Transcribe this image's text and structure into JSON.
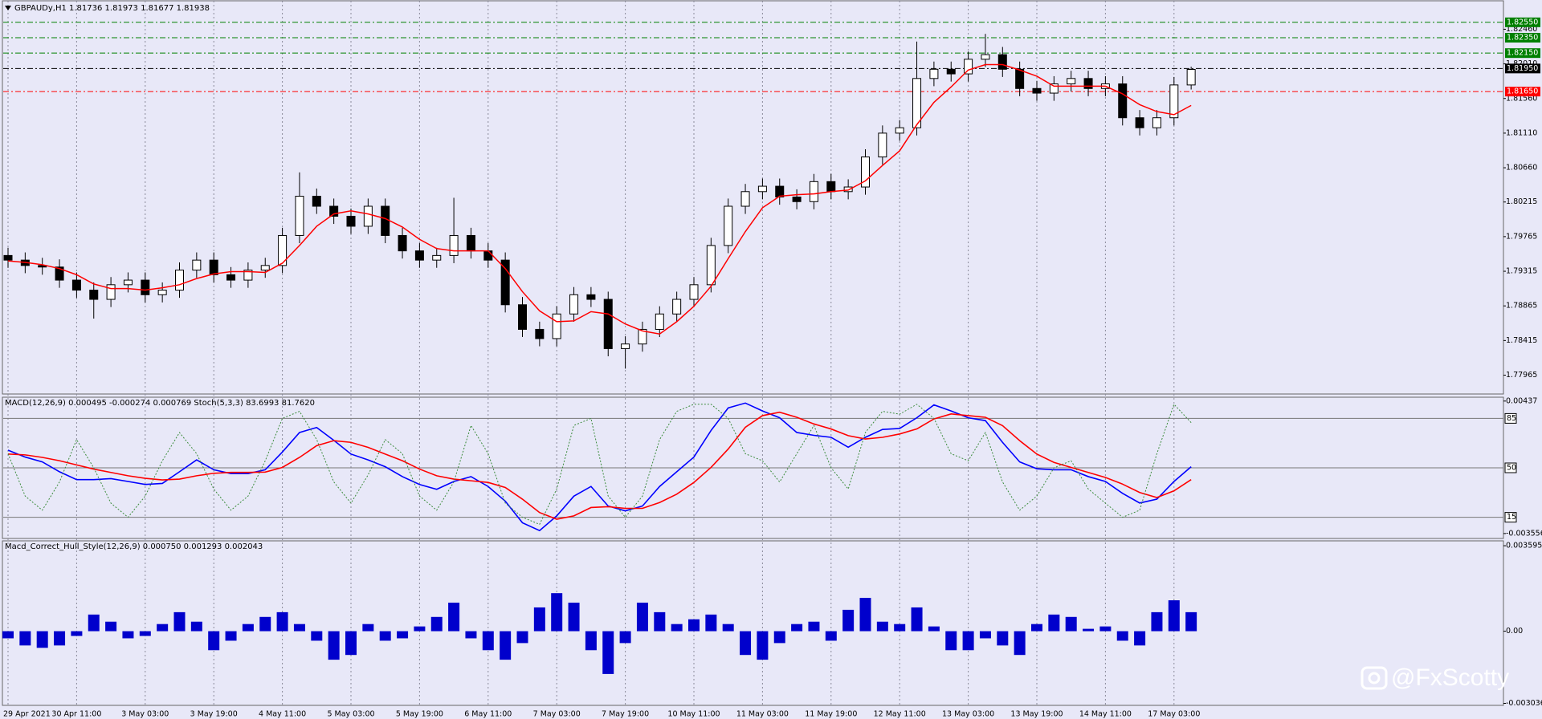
{
  "chart_data": [
    {
      "type": "candlestick",
      "title": "GBPAUDy,H1  1.81736 1.81973 1.81677 1.81938",
      "categories": [
        "29 Apr 2021",
        null,
        null,
        null,
        "30 Apr 11:00",
        null,
        null,
        null,
        "3 May 03:00",
        null,
        null,
        null,
        "3 May 19:00",
        null,
        null,
        null,
        "4 May 11:00",
        null,
        null,
        null,
        "5 May 03:00",
        null,
        null,
        null,
        "5 May 19:00",
        null,
        null,
        null,
        "6 May 11:00",
        null,
        null,
        null,
        "7 May 03:00",
        null,
        null,
        null,
        "7 May 19:00",
        null,
        null,
        null,
        "10 May 11:00",
        null,
        null,
        null,
        "11 May 03:00",
        null,
        null,
        null,
        "11 May 19:00",
        null,
        null,
        null,
        "12 May 11:00",
        null,
        null,
        null,
        "13 May 03:00",
        null,
        null,
        null,
        "13 May 19:00",
        null,
        null,
        null,
        "14 May 11:00",
        null,
        null,
        null,
        "17 May 03:00",
        null
      ],
      "open": [
        1.7952,
        1.7946,
        1.7939,
        1.7937,
        1.792,
        1.7907,
        1.7895,
        1.7914,
        1.792,
        1.7901,
        1.7907,
        1.7933,
        1.7946,
        1.7927,
        1.792,
        1.7933,
        1.7939,
        1.7978,
        1.8029,
        1.8016,
        1.8003,
        1.799,
        1.8016,
        1.7978,
        1.7958,
        1.7946,
        1.7952,
        1.7978,
        1.7958,
        1.7946,
        1.7888,
        1.7856,
        1.7844,
        1.7876,
        1.7901,
        1.7895,
        1.7831,
        1.7837,
        1.7856,
        1.7876,
        1.7895,
        1.7914,
        1.7965,
        1.8016,
        1.8035,
        1.8042,
        1.8028,
        1.8022,
        1.8048,
        1.8035,
        1.8041,
        1.808,
        1.8111,
        1.8118,
        1.8182,
        1.8194,
        1.8188,
        1.8207,
        1.8213,
        1.8194,
        1.8169,
        1.8163,
        1.8175,
        1.8182,
        1.8169,
        1.8175,
        1.8131,
        1.8118,
        1.8131,
        1.81736
      ],
      "high": [
        1.7962,
        1.7956,
        1.7949,
        1.7947,
        1.793,
        1.7917,
        1.7924,
        1.793,
        1.793,
        1.7917,
        1.7943,
        1.7956,
        1.7956,
        1.7937,
        1.7943,
        1.7949,
        1.7988,
        1.806,
        1.8039,
        1.8026,
        1.8013,
        1.8026,
        1.8026,
        1.7988,
        1.7968,
        1.7962,
        1.8027,
        1.7988,
        1.7968,
        1.7956,
        1.7898,
        1.7866,
        1.7886,
        1.7911,
        1.7911,
        1.7905,
        1.7847,
        1.7866,
        1.7886,
        1.7905,
        1.7924,
        1.7975,
        1.8026,
        1.8045,
        1.8052,
        1.8052,
        1.8038,
        1.8058,
        1.8058,
        1.8051,
        1.809,
        1.8121,
        1.8128,
        1.823,
        1.8204,
        1.8204,
        1.8217,
        1.824,
        1.8223,
        1.8204,
        1.8179,
        1.8185,
        1.8192,
        1.8192,
        1.8185,
        1.8185,
        1.8141,
        1.8141,
        1.8184,
        1.81973
      ],
      "low": [
        1.7936,
        1.7929,
        1.7927,
        1.791,
        1.7897,
        1.787,
        1.7885,
        1.7904,
        1.7891,
        1.7891,
        1.7897,
        1.7923,
        1.7917,
        1.791,
        1.791,
        1.7923,
        1.7929,
        1.7968,
        1.8006,
        1.7993,
        1.798,
        1.798,
        1.7968,
        1.7948,
        1.7936,
        1.7936,
        1.7942,
        1.7948,
        1.7936,
        1.7878,
        1.7846,
        1.7834,
        1.7834,
        1.7866,
        1.7885,
        1.7821,
        1.7805,
        1.7827,
        1.7846,
        1.7866,
        1.7885,
        1.7904,
        1.7955,
        1.8006,
        1.8025,
        1.8018,
        1.8012,
        1.8012,
        1.8025,
        1.8025,
        1.8031,
        1.807,
        1.8101,
        1.8108,
        1.8172,
        1.8178,
        1.8178,
        1.8197,
        1.8184,
        1.8159,
        1.8153,
        1.8153,
        1.8165,
        1.8159,
        1.8159,
        1.8121,
        1.8108,
        1.8108,
        1.8121,
        1.81677
      ],
      "close": [
        1.7946,
        1.7939,
        1.7937,
        1.792,
        1.7907,
        1.7895,
        1.7914,
        1.792,
        1.7901,
        1.7907,
        1.7933,
        1.7946,
        1.7927,
        1.792,
        1.7933,
        1.7939,
        1.7978,
        1.8029,
        1.8016,
        1.8003,
        1.799,
        1.8016,
        1.7978,
        1.7958,
        1.7946,
        1.7952,
        1.7978,
        1.7958,
        1.7946,
        1.7888,
        1.7856,
        1.7844,
        1.7876,
        1.7901,
        1.7895,
        1.7831,
        1.7837,
        1.7856,
        1.7876,
        1.7895,
        1.7914,
        1.7965,
        1.8016,
        1.8035,
        1.8042,
        1.8028,
        1.8022,
        1.8048,
        1.8035,
        1.8041,
        1.808,
        1.8111,
        1.8118,
        1.8182,
        1.8194,
        1.8188,
        1.8207,
        1.8213,
        1.8194,
        1.8169,
        1.8163,
        1.8175,
        1.8182,
        1.8169,
        1.8175,
        1.8131,
        1.8118,
        1.8131,
        1.81736,
        1.81938
      ],
      "up_color": "#ffffff",
      "down_color": "#000000",
      "wick_color": "#000000",
      "series": [
        {
          "color": "#ff0000",
          "values": [
            1.7945,
            1.7943,
            1.794,
            1.7935,
            1.7927,
            1.7915,
            1.7909,
            1.7909,
            1.7907,
            1.791,
            1.7914,
            1.7922,
            1.7928,
            1.7931,
            1.7931,
            1.793,
            1.7942,
            1.7965,
            1.799,
            1.8006,
            1.801,
            1.8006,
            1.8,
            1.7989,
            1.7973,
            1.7961,
            1.7958,
            1.7958,
            1.7958,
            1.7935,
            1.7905,
            1.788,
            1.7866,
            1.7867,
            1.7879,
            1.7876,
            1.7863,
            1.7854,
            1.785,
            1.7866,
            1.7886,
            1.7912,
            1.7948,
            1.7983,
            1.8014,
            1.8029,
            1.8031,
            1.8032,
            1.8035,
            1.8037,
            1.8049,
            1.8069,
            1.8088,
            1.8122,
            1.8151,
            1.8171,
            1.8193,
            1.82,
            1.82,
            1.8193,
            1.8185,
            1.8172,
            1.8172,
            1.8172,
            1.8172,
            1.8162,
            1.8148,
            1.8139,
            1.8135,
            1.8147
          ]
        }
      ],
      "levels": [
        {
          "value": 1.8255,
          "label": "1.82550",
          "color": "#008000"
        },
        {
          "value": 1.8235,
          "label": "1.82350",
          "color": "#008000"
        },
        {
          "value": 1.8215,
          "label": "1.82150",
          "color": "#008000"
        },
        {
          "value": 1.8195,
          "label": "1.81950",
          "color": "#000000"
        },
        {
          "value": 1.8165,
          "label": "1.81650",
          "color": "#ff0000"
        }
      ],
      "ylim": [
        1.7772,
        1.8284
      ],
      "yticks": [
        {
          "value": 1.8246,
          "label": "1.82460"
        },
        {
          "value": 1.8201,
          "label": "1.82010"
        },
        {
          "value": 1.8156,
          "label": "1.81560"
        },
        {
          "value": 1.8111,
          "label": "1.81110"
        },
        {
          "value": 1.8066,
          "label": "1.80660"
        },
        1.80215,
        1.79765,
        1.79315,
        1.78865,
        1.78415,
        1.77965
      ],
      "grid": true
    },
    {
      "type": "line",
      "title": "MACD(12,26,9) 0.000495 -0.000274 0.000769  Stoch(5,3,3) 83.6993 81.7620",
      "series": [
        {
          "color": "#0000ff",
          "values": [
            0.00143,
            0.00102,
            0.00073,
            0.00014,
            -0.00033,
            -0.00033,
            -0.00027,
            -0.00044,
            -0.00062,
            -0.00056,
            0.00014,
            0.00085,
            0.00026,
            3e-05,
            3e-05,
            0.00026,
            0.00132,
            0.00249,
            0.00279,
            0.00202,
            0.0012,
            0.00085,
            0.00044,
            -0.00015,
            -0.00062,
            -0.00091,
            -0.00044,
            -0.00015,
            -0.00074,
            -0.00162,
            -0.00291,
            -0.00338,
            -0.0025,
            -0.00132,
            -0.00074,
            -0.00191,
            -0.0022,
            -0.00191,
            -0.00074,
            0.00014,
            0.00102,
            0.00261,
            0.00396,
            0.00425,
            0.00378,
            0.00337,
            0.00249,
            0.00232,
            0.0022,
            0.00161,
            0.0022,
            0.00267,
            0.00273,
            0.00337,
            0.00414,
            0.00378,
            0.00337,
            0.0032,
            0.0019,
            0.00073,
            0.00032,
            0.00026,
            0.00026,
            -0.00015,
            -0.00044,
            -0.00115,
            -0.00173,
            -0.0015,
            -0.00044,
            0.00044
          ]
        },
        {
          "color": "#ff0000",
          "values": [
            0.0012,
            0.00115,
            0.001,
            0.0008,
            0.00055,
            0.0003,
            0.0001,
            -0.0001,
            -0.00025,
            -0.00035,
            -0.0003,
            -0.0001,
            5e-05,
            0.0001,
            0.0001,
            0.00012,
            0.0004,
            0.001,
            0.0017,
            0.002,
            0.0019,
            0.0016,
            0.0012,
            0.0008,
            0.0003,
            -0.0001,
            -0.0003,
            -0.0004,
            -0.0005,
            -0.0008,
            -0.0015,
            -0.0023,
            -0.0027,
            -0.0025,
            -0.002,
            -0.00195,
            -0.00205,
            -0.00205,
            -0.0017,
            -0.0012,
            -0.0005,
            0.0004,
            0.0015,
            0.0028,
            0.0035,
            0.0037,
            0.0034,
            0.003,
            0.0027,
            0.0023,
            0.0021,
            0.0022,
            0.0024,
            0.0027,
            0.0033,
            0.0036,
            0.0035,
            0.0034,
            0.0029,
            0.002,
            0.0012,
            0.0007,
            0.0004,
            0.0001,
            -0.0002,
            -0.0006,
            -0.0011,
            -0.0014,
            -0.001,
            -0.00033
          ]
        },
        {
          "color": "#3c8c3c",
          "axis": "y2",
          "dashed": true,
          "values": [
            60,
            30,
            20,
            40,
            70,
            50,
            25,
            15,
            30,
            55,
            75,
            60,
            35,
            20,
            30,
            55,
            85,
            90,
            70,
            40,
            25,
            45,
            70,
            60,
            30,
            20,
            40,
            80,
            60,
            25,
            15,
            10,
            35,
            80,
            85,
            30,
            15,
            30,
            70,
            90,
            95,
            95,
            85,
            60,
            55,
            40,
            60,
            80,
            50,
            35,
            75,
            90,
            88,
            95,
            85,
            60,
            55,
            75,
            40,
            20,
            30,
            50,
            55,
            35,
            25,
            15,
            20,
            60,
            95,
            82
          ]
        }
      ],
      "ylim": [
        -0.00385,
        0.0046
      ],
      "yticks": [
        0.00437,
        -0.003556
      ],
      "y2lim": [
        0,
        100
      ],
      "y2ticks": [
        85,
        50,
        15
      ]
    },
    {
      "type": "bar",
      "title": "Macd_Correct_Hull_Style(12,26,9) 0.000750 0.001293 0.002043",
      "color": "#0000cc",
      "values": [
        -0.0003,
        -0.0006,
        -0.0007,
        -0.0006,
        -0.0002,
        0.0007,
        0.0004,
        -0.0003,
        -0.0002,
        0.0003,
        0.0008,
        0.0004,
        -0.0008,
        -0.0004,
        0.0003,
        0.0006,
        0.0008,
        0.0003,
        -0.0004,
        -0.0012,
        -0.001,
        0.0003,
        -0.0004,
        -0.0003,
        0.0002,
        0.0006,
        0.0012,
        -0.0003,
        -0.0008,
        -0.0012,
        -0.0005,
        0.001,
        0.0016,
        0.0012,
        -0.0008,
        -0.0018,
        -0.0005,
        0.0012,
        0.0008,
        0.0003,
        0.0005,
        0.0007,
        0.0003,
        -0.001,
        -0.0012,
        -0.0005,
        0.0003,
        0.0004,
        -0.0004,
        0.0009,
        0.0014,
        0.0004,
        0.0003,
        0.001,
        0.0002,
        -0.0008,
        -0.0008,
        -0.0003,
        -0.0006,
        -0.001,
        0.0003,
        0.0007,
        0.0006,
        0.0001,
        0.0002,
        -0.0004,
        -0.0006,
        0.0008,
        0.0013,
        0.0008
      ],
      "ylim": [
        -0.00312,
        0.0038
      ],
      "yticks": [
        0.003595,
        {
          "value": 0,
          "label": "0.00"
        },
        -0.003036
      ]
    }
  ],
  "watermark": "@FxScotty"
}
